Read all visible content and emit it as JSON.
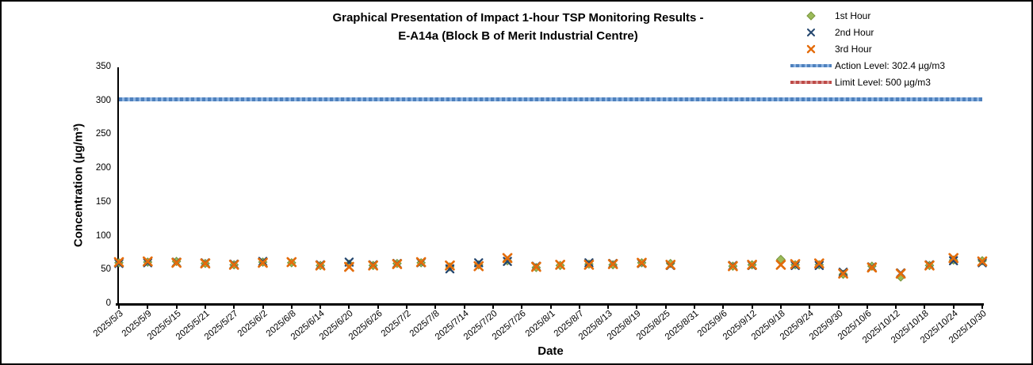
{
  "figure": {
    "title_line1": "Graphical Presentation of Impact 1-hour TSP Monitoring Results -",
    "title_line2": "E-A14a (Block B of Merit Industrial Centre)"
  },
  "legend": {
    "items": [
      {
        "label": "1st Hour",
        "marker": "green-diamond",
        "color": "#9BBB59"
      },
      {
        "label": "2nd Hour",
        "marker": "blue-x",
        "color": "#24466E"
      },
      {
        "label": "3rd Hour",
        "marker": "orange-x",
        "color": "#E46C0A"
      },
      {
        "label": "Action Level: 302.4 µg/m3",
        "marker": "blue-line",
        "color": "#4F81BD"
      },
      {
        "label": "Limit Level: 500 µg/m3",
        "marker": "red-line",
        "color": "#BE4B48"
      }
    ]
  },
  "chart_data": {
    "type": "scatter",
    "title": "Graphical Presentation of Impact 1-hour TSP Monitoring Results - E-A14a (Block B of Merit Industrial Centre)",
    "xlabel": "Date",
    "ylabel": "Concentration (µg/m³)",
    "ylim": [
      0,
      350
    ],
    "yticks": [
      0,
      50,
      100,
      150,
      200,
      250,
      300,
      350
    ],
    "x_tick_interval_days": 6,
    "x_axis_days_span": 180,
    "x_tick_labels": [
      "2025/5/3",
      "2025/5/9",
      "2025/5/15",
      "2025/5/21",
      "2025/5/27",
      "2025/6/2",
      "2025/6/8",
      "2025/6/14",
      "2025/6/20",
      "2025/6/26",
      "2025/7/2",
      "2025/7/8",
      "2025/7/14",
      "2025/7/20",
      "2025/7/26",
      "2025/8/1",
      "2025/8/7",
      "2025/8/13",
      "2025/8/19",
      "2025/8/25",
      "2025/8/31",
      "2025/9/6",
      "2025/9/12",
      "2025/9/18",
      "2025/9/24",
      "2025/9/30",
      "2025/10/6",
      "2025/10/12",
      "2025/10/18",
      "2025/10/24",
      "2025/10/30"
    ],
    "grid": false,
    "legend_position": "top-right",
    "series_meta": [
      {
        "name": "1st Hour",
        "key": "h1",
        "marker": "diamond",
        "color": "#9BBB59",
        "edge": "#77933C"
      },
      {
        "name": "2nd Hour",
        "key": "h2",
        "marker": "x",
        "color": "#24466E"
      },
      {
        "name": "3rd Hour",
        "key": "h3",
        "marker": "x",
        "color": "#E46C0A"
      }
    ],
    "reference_lines": [
      {
        "name": "Action Level",
        "value": 302.4,
        "unit": "µg/m3",
        "color": "#4F81BD",
        "color_light": "#8DB4E2"
      },
      {
        "name": "Limit Level",
        "value": 500,
        "unit": "µg/m3",
        "color": "#BE4B48",
        "color_light": "#D99694"
      }
    ],
    "measurements": [
      {
        "date": "2025/5/3",
        "day": 0,
        "h1": 61,
        "h2": 60,
        "h3": 62
      },
      {
        "date": "2025/5/9",
        "day": 6,
        "h1": 62,
        "h2": 61,
        "h3": 63
      },
      {
        "date": "2025/5/15",
        "day": 12,
        "h1": 63,
        "h2": 62,
        "h3": 61
      },
      {
        "date": "2025/5/21",
        "day": 18,
        "h1": 60,
        "h2": 61,
        "h3": 60
      },
      {
        "date": "2025/5/27",
        "day": 24,
        "h1": 58,
        "h2": 59,
        "h3": 58
      },
      {
        "date": "2025/6/2",
        "day": 30,
        "h1": 62,
        "h2": 63,
        "h3": 61
      },
      {
        "date": "2025/6/8",
        "day": 36,
        "h1": 61,
        "h2": 62,
        "h3": 62
      },
      {
        "date": "2025/6/14",
        "day": 42,
        "h1": 57,
        "h2": 58,
        "h3": 57
      },
      {
        "date": "2025/6/20",
        "day": 48,
        "h1": 59,
        "h2": 62,
        "h3": 55
      },
      {
        "date": "2025/6/25",
        "day": 53,
        "h1": 57,
        "h2": 58,
        "h3": 57
      },
      {
        "date": "2025/6/30",
        "day": 58,
        "h1": 60,
        "h2": 60,
        "h3": 59
      },
      {
        "date": "2025/7/5",
        "day": 63,
        "h1": 61,
        "h2": 61,
        "h3": 62
      },
      {
        "date": "2025/7/11",
        "day": 69,
        "h1": 55,
        "h2": 52,
        "h3": 57
      },
      {
        "date": "2025/7/17",
        "day": 75,
        "h1": 58,
        "h2": 61,
        "h3": 56
      },
      {
        "date": "2025/7/23",
        "day": 81,
        "h1": 64,
        "h2": 63,
        "h3": 68
      },
      {
        "date": "2025/7/29",
        "day": 87,
        "h1": 54,
        "h2": 56,
        "h3": 55
      },
      {
        "date": "2025/8/3",
        "day": 92,
        "h1": 57,
        "h2": 58,
        "h3": 58
      },
      {
        "date": "2025/8/9",
        "day": 98,
        "h1": 59,
        "h2": 61,
        "h3": 58
      },
      {
        "date": "2025/8/14",
        "day": 103,
        "h1": 58,
        "h2": 60,
        "h3": 59
      },
      {
        "date": "2025/8/20",
        "day": 109,
        "h1": 61,
        "h2": 60,
        "h3": 61
      },
      {
        "date": "2025/8/26",
        "day": 115,
        "h1": 60,
        "h2": 57,
        "h3": 58
      },
      {
        "date": "2025/9/8",
        "day": 128,
        "h1": 56,
        "h2": 57,
        "h3": 56
      },
      {
        "date": "2025/9/12",
        "day": 132,
        "h1": 58,
        "h2": 57,
        "h3": 58
      },
      {
        "date": "2025/9/18",
        "day": 138,
        "h1": 66,
        "h2": 58,
        "h3": 58
      },
      {
        "date": "2025/9/21",
        "day": 141,
        "h1": 58,
        "h2": 57,
        "h3": 59
      },
      {
        "date": "2025/9/26",
        "day": 146,
        "h1": 58,
        "h2": 57,
        "h3": 60
      },
      {
        "date": "2025/10/1",
        "day": 151,
        "h1": 44,
        "h2": 47,
        "h3": 45
      },
      {
        "date": "2025/10/7",
        "day": 157,
        "h1": 56,
        "h2": 55,
        "h3": 54
      },
      {
        "date": "2025/10/13",
        "day": 163,
        "h1": 40,
        "h2": 46,
        "h3": 45
      },
      {
        "date": "2025/10/19",
        "day": 169,
        "h1": 57,
        "h2": 58,
        "h3": 57
      },
      {
        "date": "2025/10/24",
        "day": 174,
        "h1": 65,
        "h2": 64,
        "h3": 68
      },
      {
        "date": "2025/10/30",
        "day": 180,
        "h1": 64,
        "h2": 61,
        "h3": 63
      }
    ]
  }
}
